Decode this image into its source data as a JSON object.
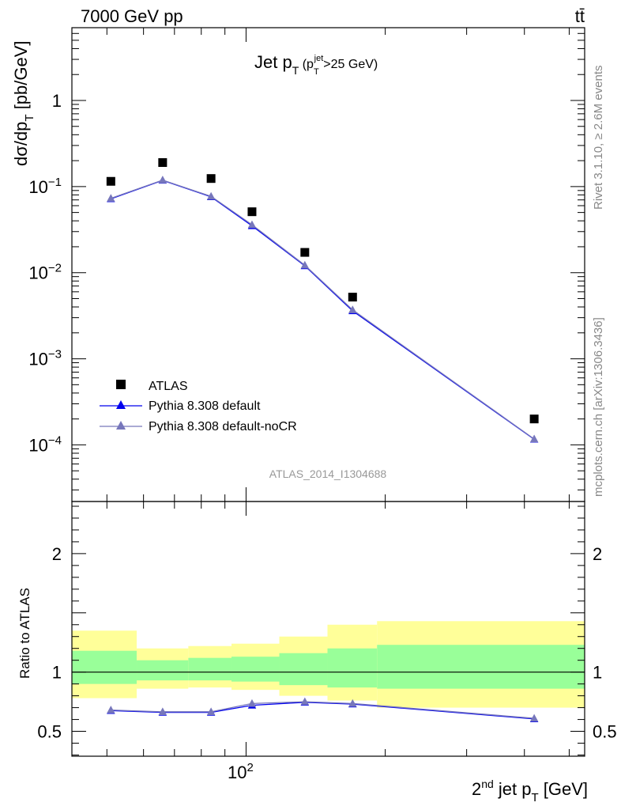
{
  "header": {
    "left": "7000 GeV pp",
    "right": "tt̄"
  },
  "side_notes": {
    "rivet": "Rivet 3.1.10, ≥ 2.6M events",
    "mcplots": "mcplots.cern.ch [arXiv:1306.3436]"
  },
  "watermark": "ATLAS_2014_I1304688",
  "chart_data": [
    {
      "type": "scatter",
      "panel": "main",
      "title": "Jet p_T (p_T^jet > 25 GeV)",
      "xlabel": "2nd jet p_T [GeV]",
      "ylabel": "dσ/dp_T [pb/GeV]",
      "xscale": "log",
      "yscale": "log",
      "xlim": [
        42,
        540
      ],
      "ylim": [
        2.2e-05,
        7
      ],
      "x_tick_labels": [
        "10^2"
      ],
      "y_tick_labels": [
        "10^-4",
        "10^-3",
        "10^-2",
        "10^-1",
        "1"
      ],
      "legend_position": "lower-left",
      "series": [
        {
          "name": "ATLAS",
          "style": "markers",
          "color": "#000000",
          "x": [
            51,
            66,
            84,
            103,
            134,
            170,
            420
          ],
          "y": [
            0.115,
            0.19,
            0.124,
            0.051,
            0.0172,
            0.0052,
            0.0002
          ]
        },
        {
          "name": "Pythia 8.308 default",
          "style": "line+triangles",
          "color": "#0000ee",
          "x": [
            51,
            66,
            84,
            103,
            134,
            170,
            420
          ],
          "y": [
            0.072,
            0.118,
            0.076,
            0.035,
            0.012,
            0.0036,
            0.000116
          ]
        },
        {
          "name": "Pythia 8.308 default-noCR",
          "style": "line+triangles",
          "color": "#7777bb",
          "x": [
            51,
            66,
            84,
            103,
            134,
            170,
            420
          ],
          "y": [
            0.073,
            0.119,
            0.077,
            0.036,
            0.0122,
            0.0037,
            0.000117
          ]
        }
      ]
    },
    {
      "type": "line",
      "panel": "ratio",
      "ylabel": "Ratio to ATLAS",
      "xlabel": "2nd jet p_T [GeV]",
      "xscale": "log",
      "xlim": [
        42,
        540
      ],
      "ylim": [
        0.29,
        2.44
      ],
      "y_tick_labels": [
        "0.5",
        "1",
        "2"
      ],
      "reference_line": 1,
      "band_edges": [
        42,
        58,
        75,
        93,
        118,
        150,
        192,
        540
      ],
      "band_outer": [
        [
          0.78,
          1.35
        ],
        [
          0.86,
          1.2
        ],
        [
          0.87,
          1.22
        ],
        [
          0.85,
          1.24
        ],
        [
          0.8,
          1.3
        ],
        [
          0.76,
          1.4
        ],
        [
          0.7,
          1.43
        ]
      ],
      "band_inner": [
        [
          0.9,
          1.18
        ],
        [
          0.93,
          1.1
        ],
        [
          0.93,
          1.12
        ],
        [
          0.92,
          1.13
        ],
        [
          0.89,
          1.16
        ],
        [
          0.87,
          1.2
        ],
        [
          0.86,
          1.23
        ]
      ],
      "band_colors": {
        "outer": "#ffff99",
        "inner": "#99ff99"
      },
      "series": [
        {
          "name": "Pythia 8.308 default",
          "color": "#0000ee",
          "x": [
            51,
            66,
            84,
            103,
            134,
            170,
            420
          ],
          "y": [
            0.675,
            0.66,
            0.66,
            0.72,
            0.745,
            0.73,
            0.605
          ]
        },
        {
          "name": "Pythia 8.308 default-noCR",
          "color": "#7777bb",
          "x": [
            51,
            66,
            84,
            103,
            134,
            170,
            420
          ],
          "y": [
            0.68,
            0.665,
            0.665,
            0.735,
            0.75,
            0.735,
            0.61
          ]
        }
      ]
    }
  ]
}
